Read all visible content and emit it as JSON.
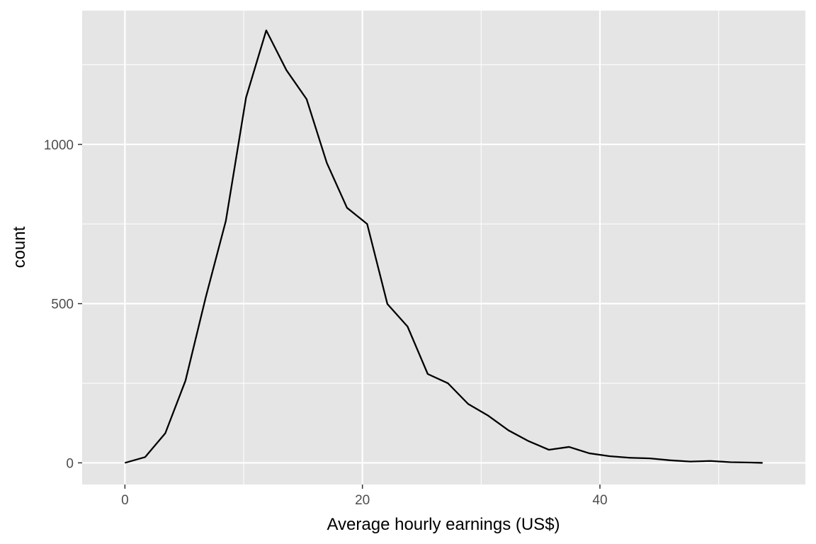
{
  "chart_data": {
    "type": "line",
    "title": "",
    "xlabel": "Average hourly earnings (US$)",
    "ylabel": "count",
    "xlim": [
      -3.6,
      57.3
    ],
    "ylim": [
      -68,
      1420
    ],
    "x_ticks": [
      0,
      20,
      40
    ],
    "x_tick_labels": [
      "0",
      "20",
      "40"
    ],
    "y_ticks": [
      0,
      500,
      1000
    ],
    "y_tick_labels": [
      "0",
      "500",
      "1000"
    ],
    "grid": true,
    "legend": "none",
    "series": [
      {
        "x": [
          0,
          1.7,
          3.4,
          5.1,
          6.8,
          8.5,
          10.2,
          11.9,
          13.6,
          15.3,
          17.0,
          18.7,
          20.4,
          22.1,
          23.8,
          25.5,
          27.2,
          28.9,
          30.6,
          32.3,
          34.0,
          35.7,
          37.4,
          39.1,
          40.8,
          42.5,
          44.2,
          45.9,
          47.6,
          49.3,
          51.0,
          52.7,
          53.7
        ],
        "y": [
          0,
          18,
          93,
          258,
          519,
          760,
          1147,
          1358,
          1233,
          1142,
          942,
          801,
          750,
          499,
          428,
          279,
          250,
          185,
          148,
          102,
          68,
          41,
          50,
          30,
          21,
          16,
          14,
          8,
          4,
          6,
          2,
          1,
          0
        ],
        "color": "#000000"
      }
    ],
    "colors": {
      "panel_background": "#e5e5e5",
      "grid_major": "#ffffff",
      "line": "#000000",
      "tick_text": "#4d4d4d",
      "tick_mark": "#333333"
    }
  }
}
